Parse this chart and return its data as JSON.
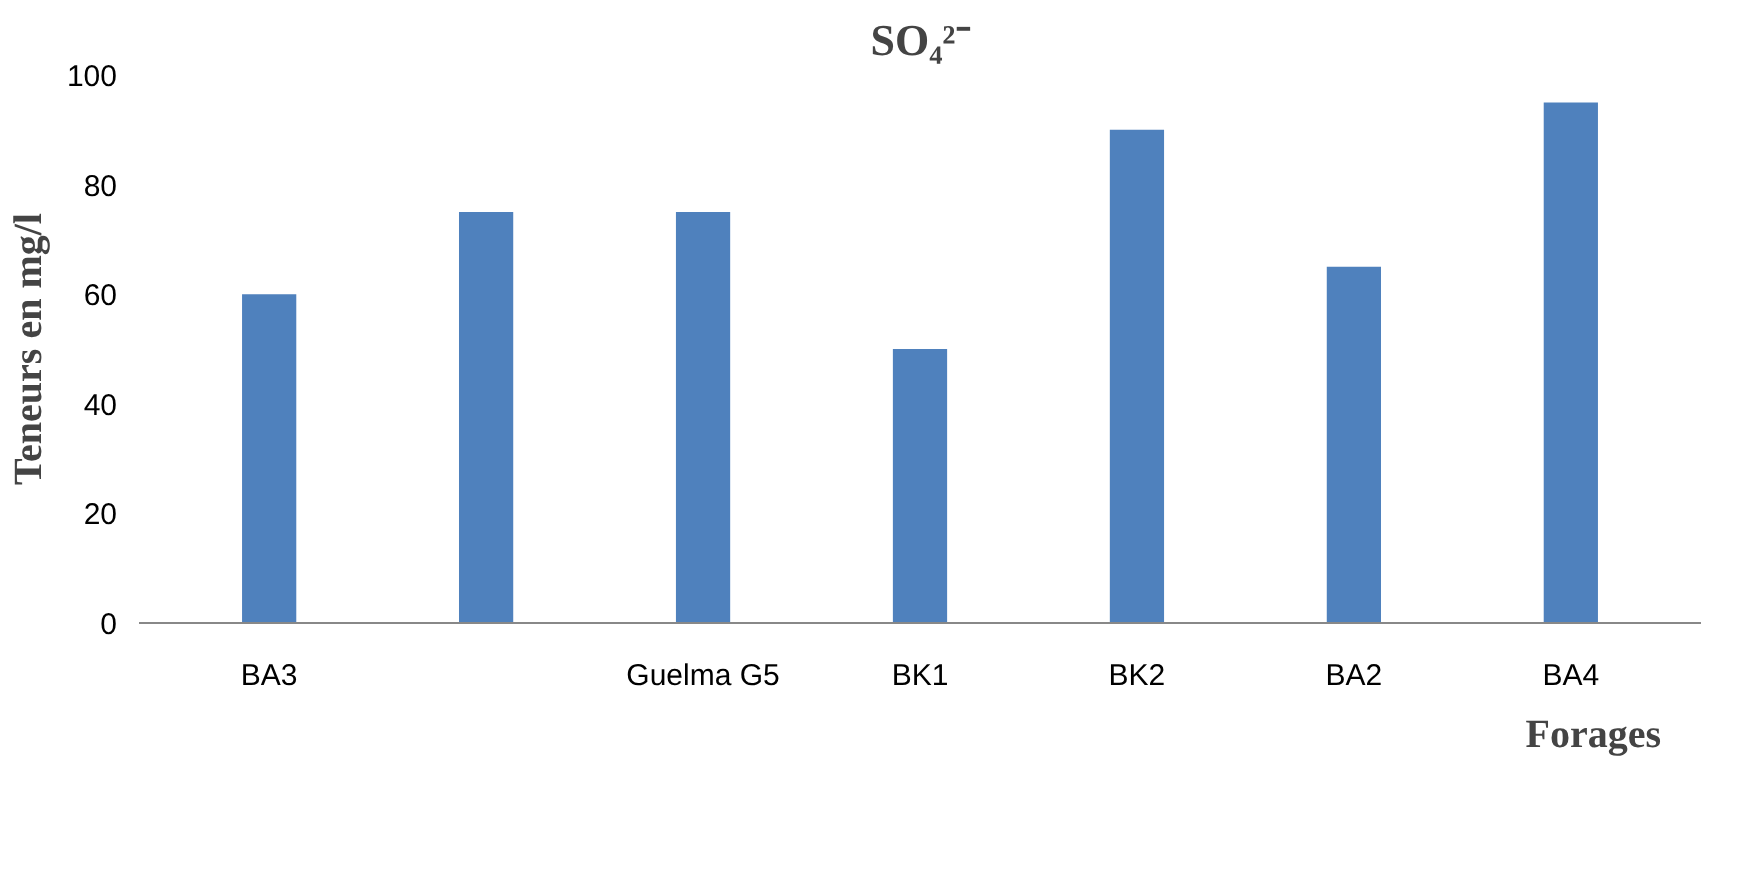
{
  "chart_data": {
    "type": "bar",
    "title": "SO₄²⁻",
    "xlabel": "Forages",
    "ylabel": "Teneurs en mg/l",
    "categories": [
      "BA3",
      null,
      "Guelma G5",
      "BK1",
      "BK2",
      "BA2",
      "BA4"
    ],
    "values": [
      60,
      75,
      75,
      50,
      90,
      65,
      95
    ],
    "color": "#4f81bd",
    "ylim": [
      0,
      100
    ],
    "yticks": [
      0,
      20,
      40,
      60,
      80,
      100
    ],
    "grid": false
  }
}
